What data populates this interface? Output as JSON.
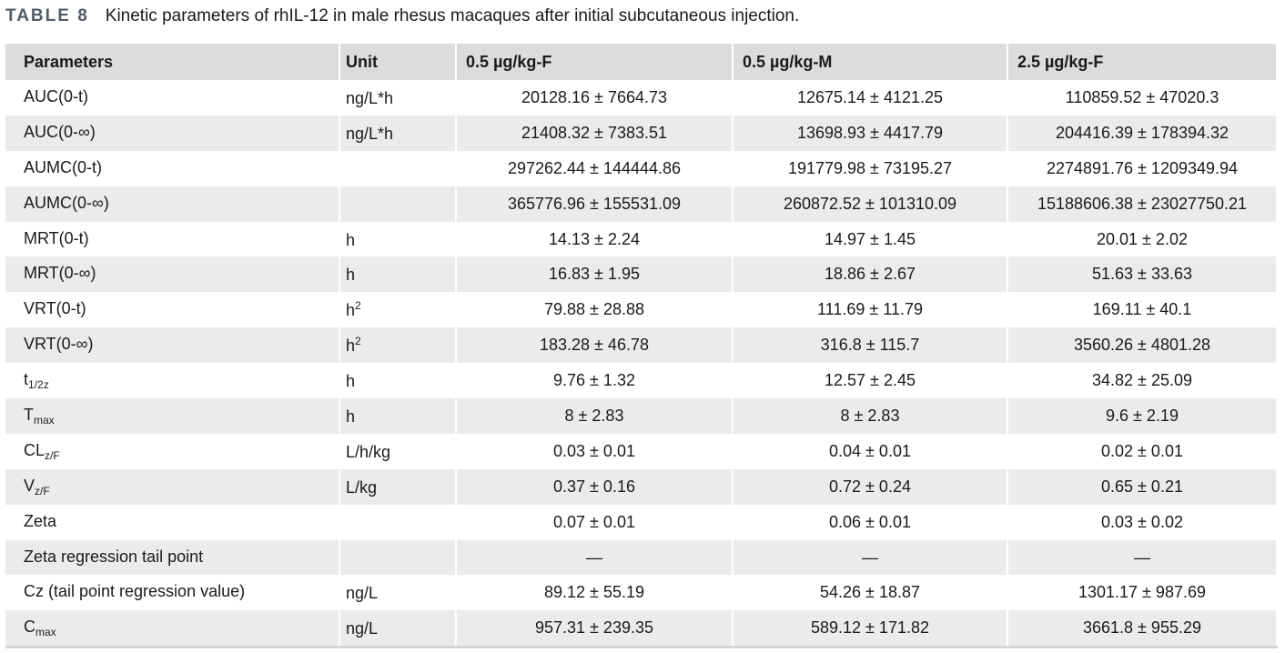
{
  "caption": {
    "label": "TABLE 8",
    "text": "Kinetic parameters of rhIL-12 in male rhesus macaques after initial subcutaneous injection."
  },
  "columns": [
    "Parameters",
    "Unit",
    "0.5 µg/kg-F",
    "0.5 µg/kg-M",
    "2.5 µg/kg-F"
  ],
  "rows": [
    {
      "param": "AUC(0-t)",
      "sub": "",
      "unit": "ng/L*h",
      "sup": "",
      "v": [
        "20128.16 ± 7664.73",
        "12675.14 ± 4121.25",
        "110859.52 ± 47020.3"
      ]
    },
    {
      "param": "AUC(0-∞)",
      "sub": "",
      "unit": "ng/L*h",
      "sup": "",
      "v": [
        "21408.32 ± 7383.51",
        "13698.93 ± 4417.79",
        "204416.39 ± 178394.32"
      ]
    },
    {
      "param": "AUMC(0-t)",
      "sub": "",
      "unit": "",
      "sup": "",
      "v": [
        "297262.44 ± 144444.86",
        "191779.98 ± 73195.27",
        "2274891.76 ± 1209349.94"
      ]
    },
    {
      "param": "AUMC(0-∞)",
      "sub": "",
      "unit": "",
      "sup": "",
      "v": [
        "365776.96 ± 155531.09",
        "260872.52 ± 101310.09",
        "15188606.38 ± 23027750.21"
      ]
    },
    {
      "param": "MRT(0-t)",
      "sub": "",
      "unit": "h",
      "sup": "",
      "v": [
        "14.13 ± 2.24",
        "14.97 ± 1.45",
        "20.01 ± 2.02"
      ]
    },
    {
      "param": "MRT(0-∞)",
      "sub": "",
      "unit": "h",
      "sup": "",
      "v": [
        "16.83 ± 1.95",
        "18.86 ± 2.67",
        "51.63 ± 33.63"
      ]
    },
    {
      "param": "VRT(0-t)",
      "sub": "",
      "unit": "h",
      "sup": "2",
      "v": [
        "79.88 ± 28.88",
        "111.69 ± 11.79",
        "169.11 ± 40.1"
      ]
    },
    {
      "param": "VRT(0-∞)",
      "sub": "",
      "unit": "h",
      "sup": "2",
      "v": [
        "183.28 ± 46.78",
        "316.8 ± 115.7",
        "3560.26 ± 4801.28"
      ]
    },
    {
      "param": "t",
      "sub": "1/2z",
      "unit": "h",
      "sup": "",
      "v": [
        "9.76 ± 1.32",
        "12.57 ± 2.45",
        "34.82 ± 25.09"
      ]
    },
    {
      "param": "T",
      "sub": "max",
      "unit": "h",
      "sup": "",
      "v": [
        "8 ± 2.83",
        "8 ± 2.83",
        "9.6 ± 2.19"
      ]
    },
    {
      "param": "CL",
      "sub": "z/F",
      "unit": "L/h/kg",
      "sup": "",
      "v": [
        "0.03 ± 0.01",
        "0.04 ± 0.01",
        "0.02 ± 0.01"
      ]
    },
    {
      "param": "V",
      "sub": "z/F",
      "unit": "L/kg",
      "sup": "",
      "v": [
        "0.37 ± 0.16",
        "0.72 ± 0.24",
        "0.65 ± 0.21"
      ]
    },
    {
      "param": "Zeta",
      "sub": "",
      "unit": "",
      "sup": "",
      "v": [
        "0.07 ± 0.01",
        "0.06 ± 0.01",
        "0.03 ± 0.02"
      ]
    },
    {
      "param": "Zeta regression tail point",
      "sub": "",
      "unit": "",
      "sup": "",
      "v": [
        "—",
        "—",
        "—"
      ]
    },
    {
      "param": "Cz (tail point regression value)",
      "sub": "",
      "unit": "ng/L",
      "sup": "",
      "v": [
        "89.12 ± 55.19",
        "54.26 ± 18.87",
        "1301.17 ± 987.69"
      ]
    },
    {
      "param": "C",
      "sub": "max",
      "unit": "ng/L",
      "sup": "",
      "v": [
        "957.31 ± 239.35",
        "589.12 ± 171.82",
        "3661.8 ± 955.29"
      ]
    }
  ]
}
